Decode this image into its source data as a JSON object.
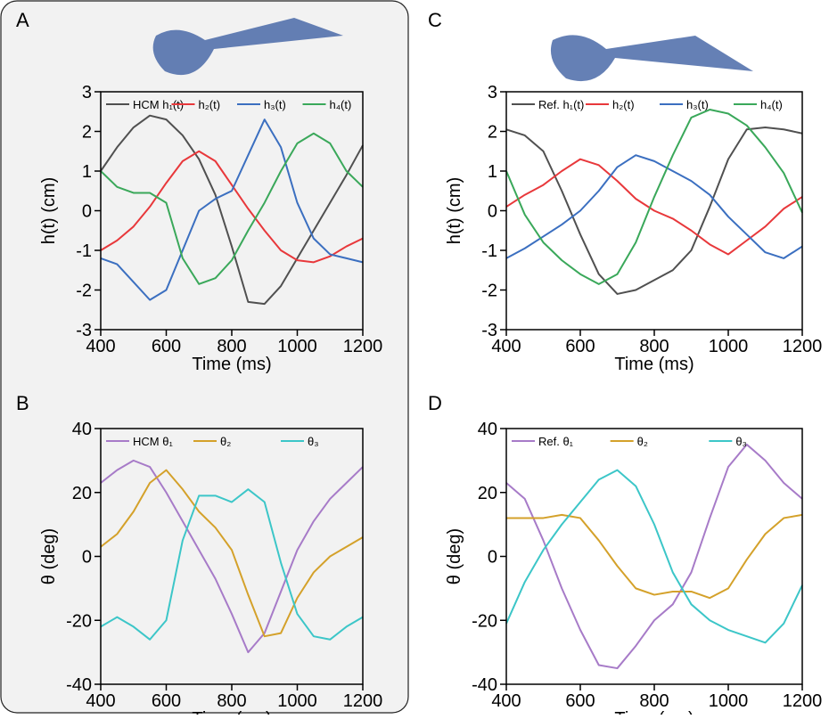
{
  "chart_data": [
    {
      "type": "line",
      "panel": "A",
      "xlabel": "Time (ms)",
      "ylabel": "h(t) (cm)",
      "x": [
        400,
        450,
        500,
        550,
        600,
        650,
        700,
        750,
        800,
        850,
        900,
        950,
        1000,
        1050,
        1100,
        1150,
        1200
      ],
      "series": [
        {
          "name": "HCM h₁(t)",
          "color": "#505050",
          "values": [
            1.0,
            1.6,
            2.1,
            2.4,
            2.3,
            1.9,
            1.3,
            0.4,
            -0.9,
            -2.3,
            -2.35,
            -1.9,
            -1.2,
            -0.5,
            0.2,
            0.9,
            1.65
          ]
        },
        {
          "name": "h₂(t)",
          "color": "#e8383b",
          "values": [
            -1.0,
            -0.75,
            -0.4,
            0.1,
            0.7,
            1.25,
            1.5,
            1.25,
            0.65,
            0.05,
            -0.5,
            -1.0,
            -1.25,
            -1.3,
            -1.15,
            -0.9,
            -0.7
          ]
        },
        {
          "name": "h₃(t)",
          "color": "#3b6fc0",
          "values": [
            -1.2,
            -1.35,
            -1.8,
            -2.25,
            -2.0,
            -1.0,
            0.0,
            0.3,
            0.5,
            1.4,
            2.3,
            1.6,
            0.2,
            -0.7,
            -1.1,
            -1.2,
            -1.3
          ]
        },
        {
          "name": "h₄(t)",
          "color": "#3aa85a",
          "values": [
            1.0,
            0.6,
            0.45,
            0.45,
            0.2,
            -1.2,
            -1.85,
            -1.7,
            -1.25,
            -0.5,
            0.2,
            1.0,
            1.7,
            1.95,
            1.7,
            1.0,
            0.6
          ]
        }
      ],
      "xlim": [
        400,
        1200
      ],
      "ylim": [
        -3,
        3
      ],
      "xticks": [
        400,
        600,
        800,
        1000,
        1200
      ],
      "yticks": [
        -3,
        -2,
        -1,
        0,
        1,
        2,
        3
      ]
    },
    {
      "type": "line",
      "panel": "B",
      "xlabel": "Time (ms)",
      "ylabel": "θ (deg)",
      "x": [
        400,
        450,
        500,
        550,
        600,
        650,
        700,
        750,
        800,
        850,
        900,
        950,
        1000,
        1050,
        1100,
        1150,
        1200
      ],
      "series": [
        {
          "name": "HCM θ₁",
          "color": "#a77bc8",
          "values": [
            23,
            27,
            30,
            28,
            20,
            11,
            2,
            -7,
            -18,
            -30,
            -24,
            -11,
            2,
            11,
            18,
            23,
            28
          ]
        },
        {
          "name": "θ₂",
          "color": "#d4a12a",
          "values": [
            3,
            7,
            14,
            23,
            27,
            21,
            14,
            9,
            2,
            -12,
            -25,
            -24,
            -13,
            -5,
            0,
            3,
            6
          ]
        },
        {
          "name": "θ₃",
          "color": "#3cc6c8",
          "values": [
            -22,
            -19,
            -22,
            -26,
            -20,
            5,
            19,
            19,
            17,
            21,
            17,
            -2,
            -18,
            -25,
            -26,
            -22,
            -19
          ]
        }
      ],
      "xlim": [
        400,
        1200
      ],
      "ylim": [
        -40,
        40
      ],
      "xticks": [
        400,
        600,
        800,
        1000,
        1200
      ],
      "yticks": [
        -40,
        -20,
        0,
        20,
        40
      ]
    },
    {
      "type": "line",
      "panel": "C",
      "xlabel": "Time (ms)",
      "ylabel": "h(t) (cm)",
      "x": [
        400,
        450,
        500,
        550,
        600,
        650,
        700,
        750,
        800,
        850,
        900,
        950,
        1000,
        1050,
        1100,
        1150,
        1200
      ],
      "series": [
        {
          "name": "Ref. h₁(t)",
          "color": "#505050",
          "values": [
            2.05,
            1.9,
            1.5,
            0.5,
            -0.6,
            -1.6,
            -2.1,
            -2.0,
            -1.75,
            -1.5,
            -1.0,
            0.1,
            1.3,
            2.05,
            2.1,
            2.05,
            1.95
          ]
        },
        {
          "name": "h₂(t)",
          "color": "#e8383b",
          "values": [
            0.1,
            0.4,
            0.65,
            1.0,
            1.3,
            1.15,
            0.75,
            0.3,
            0.0,
            -0.2,
            -0.5,
            -0.85,
            -1.1,
            -0.75,
            -0.4,
            0.05,
            0.35
          ]
        },
        {
          "name": "h₃(t)",
          "color": "#3b6fc0",
          "values": [
            -1.2,
            -0.95,
            -0.65,
            -0.35,
            0.0,
            0.5,
            1.1,
            1.4,
            1.25,
            1.0,
            0.75,
            0.4,
            -0.15,
            -0.6,
            -1.05,
            -1.2,
            -0.9
          ]
        },
        {
          "name": "h₄(t)",
          "color": "#3aa85a",
          "values": [
            1.0,
            -0.1,
            -0.8,
            -1.25,
            -1.6,
            -1.85,
            -1.6,
            -0.8,
            0.35,
            1.4,
            2.35,
            2.55,
            2.45,
            2.15,
            1.6,
            0.95,
            -0.05
          ]
        }
      ],
      "xlim": [
        400,
        1200
      ],
      "ylim": [
        -3,
        3
      ],
      "xticks": [
        400,
        600,
        800,
        1000,
        1200
      ],
      "yticks": [
        -3,
        -2,
        -1,
        0,
        1,
        2,
        3
      ]
    },
    {
      "type": "line",
      "panel": "D",
      "xlabel": "Time (ms)",
      "ylabel": "θ (deg)",
      "x": [
        400,
        450,
        500,
        550,
        600,
        650,
        700,
        750,
        800,
        850,
        900,
        950,
        1000,
        1050,
        1100,
        1150,
        1200
      ],
      "series": [
        {
          "name": "Ref. θ₁",
          "color": "#a77bc8",
          "values": [
            23,
            18,
            5,
            -10,
            -23,
            -34,
            -35,
            -28,
            -20,
            -15,
            -5,
            12,
            28,
            35,
            30,
            23,
            18
          ]
        },
        {
          "name": "θ₂",
          "color": "#d4a12a",
          "values": [
            12,
            12,
            12,
            13,
            12,
            5,
            -3,
            -10,
            -12,
            -11,
            -11,
            -13,
            -10,
            -1,
            7,
            12,
            13
          ]
        },
        {
          "name": "θ₃",
          "color": "#3cc6c8",
          "values": [
            -21,
            -8,
            2,
            10,
            17,
            24,
            27,
            22,
            10,
            -5,
            -15,
            -20,
            -23,
            -25,
            -27,
            -21,
            -9
          ]
        }
      ],
      "xlim": [
        400,
        1200
      ],
      "ylim": [
        -40,
        40
      ],
      "xticks": [
        400,
        600,
        800,
        1000,
        1200
      ],
      "yticks": [
        -40,
        -20,
        0,
        20,
        40
      ]
    }
  ]
}
